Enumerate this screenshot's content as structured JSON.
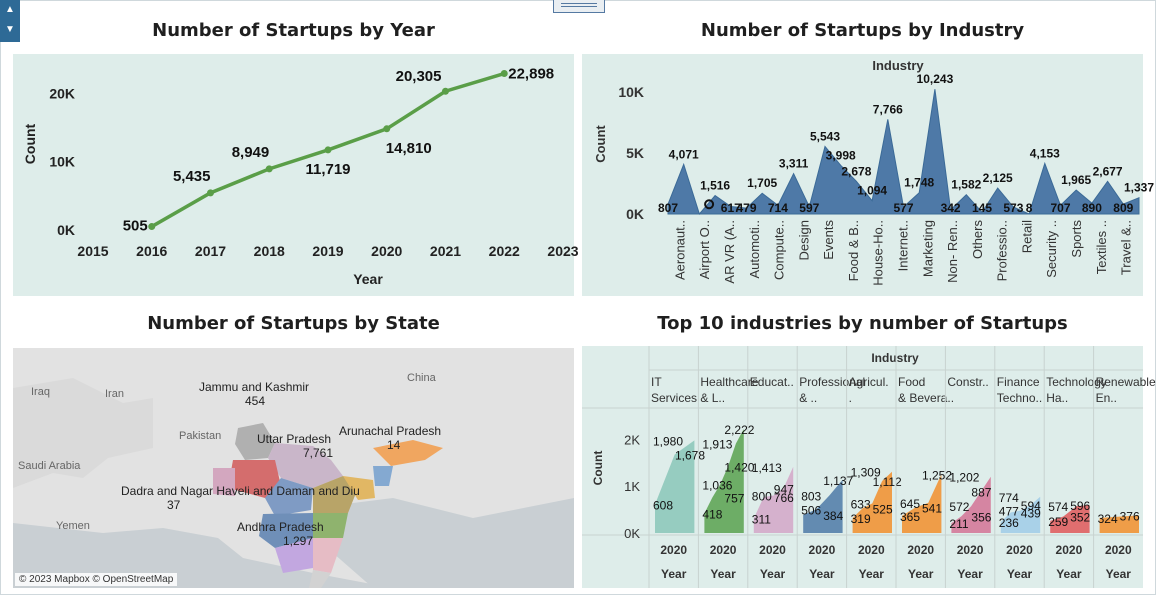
{
  "dashboard": {
    "titles": {
      "year": "Number of Startups by Year",
      "industry": "Number of Startups by Industry",
      "state": "Number of Startups by State",
      "top10": "Top 10 industries by number of Startups"
    },
    "colors": {
      "line": "#5a9e48",
      "area": "#4e79a7",
      "plot_bg": "#deedea"
    }
  },
  "map": {
    "countries": [
      "Iraq",
      "Iran",
      "Pakistan",
      "China",
      "Saudi Arabia",
      "Yemen"
    ],
    "attribution": "© 2023 Mapbox © OpenStreetMap",
    "labels": [
      {
        "name": "Jammu and Kashmir",
        "value": "454"
      },
      {
        "name": "Uttar Pradesh",
        "value": "7,761"
      },
      {
        "name": "Arunachal Pradesh",
        "value": "14"
      },
      {
        "name": "Dadra and Nagar Haveli and Daman and Diu",
        "value": "37"
      },
      {
        "name": "Andhra Pradesh",
        "value": "1,297"
      }
    ]
  },
  "chart_data": [
    {
      "type": "line",
      "title": "Number of Startups by Year",
      "xlabel": "Year",
      "ylabel": "Count",
      "x_ticks": [
        "2015",
        "2016",
        "2017",
        "2018",
        "2019",
        "2020",
        "2021",
        "2022",
        "2023"
      ],
      "y_ticks": [
        "0K",
        "10K",
        "20K"
      ],
      "x": [
        2016,
        2017,
        2018,
        2019,
        2020,
        2021,
        2022
      ],
      "values": [
        505,
        5435,
        8949,
        11719,
        14810,
        20305,
        22898
      ],
      "labels": [
        "505",
        "5,435",
        "8,949",
        "11,719",
        "14,810",
        "20,305",
        "22,898"
      ],
      "xlim": [
        2015,
        2023
      ],
      "ylim": [
        0,
        24000
      ]
    },
    {
      "type": "area",
      "title": "Number of Startups by Industry",
      "header": "Industry",
      "ylabel": "Count",
      "y_ticks": [
        "0K",
        "5K",
        "10K"
      ],
      "ylim": [
        0,
        11000
      ],
      "tick_labels": [
        "Aeronaut..",
        "Airport O..",
        "AR VR (A..",
        "Automoti..",
        "Compute..",
        "Design",
        "Events",
        "Food & B..",
        "House-Ho..",
        "Internet..",
        "Marketing",
        "Non- Ren..",
        "Others",
        "Professio..",
        "Retail",
        "Security ..",
        "Sports",
        "Textiles ..",
        "Travel &.."
      ],
      "values": [
        807,
        4071,
        0,
        1516,
        617,
        479,
        1705,
        714,
        3311,
        597,
        5543,
        3998,
        2678,
        1094,
        7766,
        577,
        1748,
        10243,
        342,
        1582,
        145,
        2125,
        573,
        8,
        4153,
        707,
        1965,
        890,
        2677,
        809,
        1337
      ],
      "labels": [
        "807",
        "4,071",
        "",
        "1,516",
        "617",
        "479",
        "1,705",
        "714",
        "3,311",
        "597",
        "5,543",
        "3,998",
        "2,678",
        "1,094",
        "7,766",
        "577",
        "1,748",
        "10,243",
        "342",
        "1,582",
        "145",
        "2,125",
        "573",
        "8",
        "4,153",
        "707",
        "1,965",
        "890",
        "2,677",
        "809",
        "1,337"
      ]
    },
    {
      "type": "area",
      "title": "Top 10 industries by number of Startups",
      "header": "Industry",
      "ylabel": "Count",
      "y_ticks": [
        "0K",
        "1K",
        "2K"
      ],
      "ylim": [
        0,
        2500
      ],
      "x_tick": "2020",
      "x_label": "Year",
      "panels": [
        {
          "name": "IT Services",
          "values": [
            608,
            1678,
            1980
          ],
          "labels": [
            "608",
            "1,678",
            "1,980"
          ],
          "color": "#8ac6b9"
        },
        {
          "name": "Healthcare & L..",
          "values": [
            418,
            757,
            1036,
            1420,
            1913,
            2222
          ],
          "labels": [
            "418",
            "757",
            "1,036",
            "1,420",
            "1,913",
            "2,222"
          ],
          "color": "#59a14f"
        },
        {
          "name": "Educat..",
          "values": [
            311,
            766,
            800,
            947,
            1413
          ],
          "labels": [
            "311",
            "766",
            "800",
            "947",
            "1,413"
          ],
          "color": "#d4a6c8"
        },
        {
          "name": "Professional & ..",
          "values": [
            506,
            384,
            803,
            1137
          ],
          "labels": [
            "506",
            "384",
            "803",
            "1,137"
          ],
          "color": "#4e79a7"
        },
        {
          "name": "Agricul..",
          "values": [
            319,
            525,
            633,
            1112,
            1309
          ],
          "labels": [
            "319",
            "525",
            "633",
            "1,112",
            "1,309"
          ],
          "color": "#f28e2b"
        },
        {
          "name": "Food & Bevera..",
          "values": [
            365,
            541,
            645,
            1252
          ],
          "labels": [
            "365",
            "541",
            "645",
            "1,252"
          ],
          "color": "#f28e2b"
        },
        {
          "name": "Constr..",
          "values": [
            211,
            356,
            572,
            887,
            1202
          ],
          "labels": [
            "211",
            "356",
            "572",
            "887",
            "1,202"
          ],
          "color": "#d37295"
        },
        {
          "name": "Finance Techno..",
          "values": [
            236,
            439,
            477,
            594,
            774
          ],
          "labels": [
            "236",
            "439",
            "477",
            "594",
            "774"
          ],
          "color": "#a0cbe8"
        },
        {
          "name": "Technology Ha..",
          "values": [
            259,
            352,
            574,
            596
          ],
          "labels": [
            "259",
            "352",
            "574",
            "596"
          ],
          "color": "#e15759"
        },
        {
          "name": "Renewable En..",
          "values": [
            324,
            376
          ],
          "labels": [
            "324",
            "376"
          ],
          "color": "#f28e2b"
        }
      ]
    }
  ]
}
